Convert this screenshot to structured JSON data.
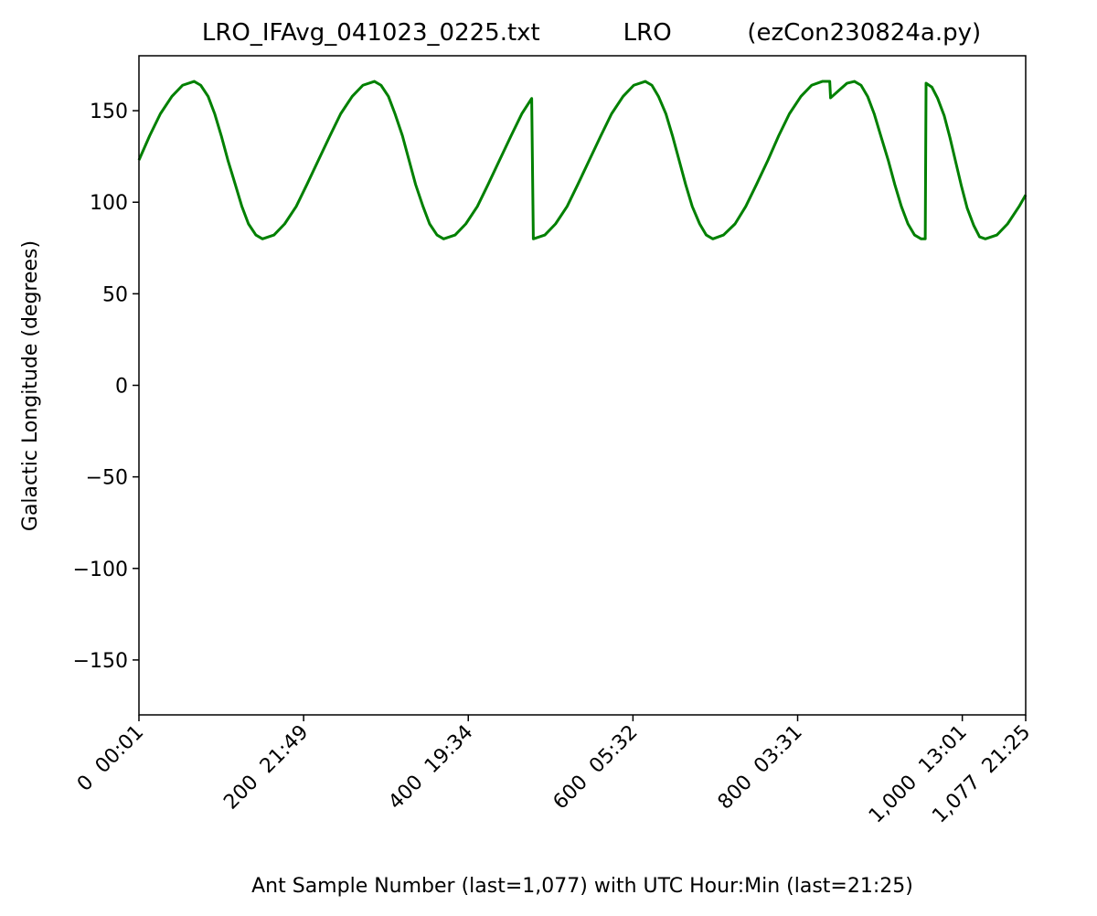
{
  "chart_data": {
    "type": "line",
    "title": "LRO_IFAvg_041023_0225.txt           LRO          (ezCon230824a.py)",
    "xlabel": "Ant Sample Number (last=1,077) with UTC Hour:Min (last=21:25)",
    "ylabel": "Galactic Longitude (degrees)",
    "color": "#008000",
    "x": [
      0,
      13,
      26,
      40,
      53,
      67,
      75,
      84,
      92,
      100,
      108,
      117,
      125,
      133,
      142,
      150,
      164,
      177,
      191,
      204,
      218,
      232,
      245,
      259,
      272,
      286,
      294,
      303,
      311,
      320,
      328,
      336,
      345,
      353,
      362,
      370,
      384,
      397,
      411,
      424,
      438,
      452,
      465,
      477,
      479,
      493,
      506,
      520,
      533,
      547,
      561,
      574,
      588,
      601,
      615,
      623,
      631,
      640,
      648,
      656,
      664,
      672,
      681,
      689,
      697,
      710,
      724,
      737,
      750,
      764,
      777,
      790,
      804,
      817,
      830,
      839,
      840,
      850,
      860,
      869,
      877,
      885,
      893,
      901,
      910,
      918,
      926,
      934,
      942,
      950,
      955,
      956,
      963,
      970,
      978,
      985,
      992,
      999,
      1006,
      1014,
      1021,
      1028,
      1042,
      1055,
      1069,
      1077
    ],
    "values": [
      123,
      136.3,
      148.3,
      157.8,
      163.9,
      166,
      163.9,
      157.8,
      148.3,
      136.3,
      123,
      109.7,
      97.7,
      88.2,
      82.1,
      80,
      82.1,
      88.2,
      97.7,
      109.7,
      123,
      136.3,
      148.3,
      157.8,
      163.9,
      166,
      163.9,
      157.8,
      148.3,
      136.3,
      123,
      109.7,
      97.7,
      88.2,
      82.1,
      80,
      82.1,
      88.2,
      97.7,
      109.7,
      123,
      136.3,
      148.3,
      156.7,
      80,
      82.1,
      88.2,
      97.7,
      109.7,
      123,
      136.3,
      148.3,
      157.8,
      163.9,
      166,
      163.9,
      157.8,
      148.3,
      136.3,
      123,
      109.7,
      97.7,
      88.2,
      82.1,
      80,
      82.1,
      88.2,
      97.7,
      109.7,
      123,
      136.3,
      148.3,
      157.8,
      163.9,
      166,
      166,
      157,
      161,
      165,
      166,
      163.9,
      157.8,
      148.3,
      136.3,
      123,
      109.7,
      97.7,
      88.2,
      82.1,
      80,
      80,
      165,
      162.9,
      156.8,
      147.3,
      135.3,
      122,
      108.7,
      96.7,
      87.2,
      81.1,
      80,
      82.1,
      88.2,
      97.7,
      104
    ],
    "xlim": [
      0,
      1077
    ],
    "xticks": [
      {
        "value": 0,
        "label": "0  00:01"
      },
      {
        "value": 200,
        "label": "200  21:49"
      },
      {
        "value": 400,
        "label": "400  19:34"
      },
      {
        "value": 600,
        "label": "600  05:32"
      },
      {
        "value": 800,
        "label": "800  03:31"
      },
      {
        "value": 1000,
        "label": "1,000  13:01"
      },
      {
        "value": 1077,
        "label": "1,077  21:25"
      }
    ],
    "ylim": [
      -180,
      180
    ],
    "yticks": [
      {
        "value": -150,
        "label": "−150"
      },
      {
        "value": -100,
        "label": "−100"
      },
      {
        "value": -50,
        "label": "−50"
      },
      0,
      50,
      100,
      150
    ],
    "grid": false
  }
}
